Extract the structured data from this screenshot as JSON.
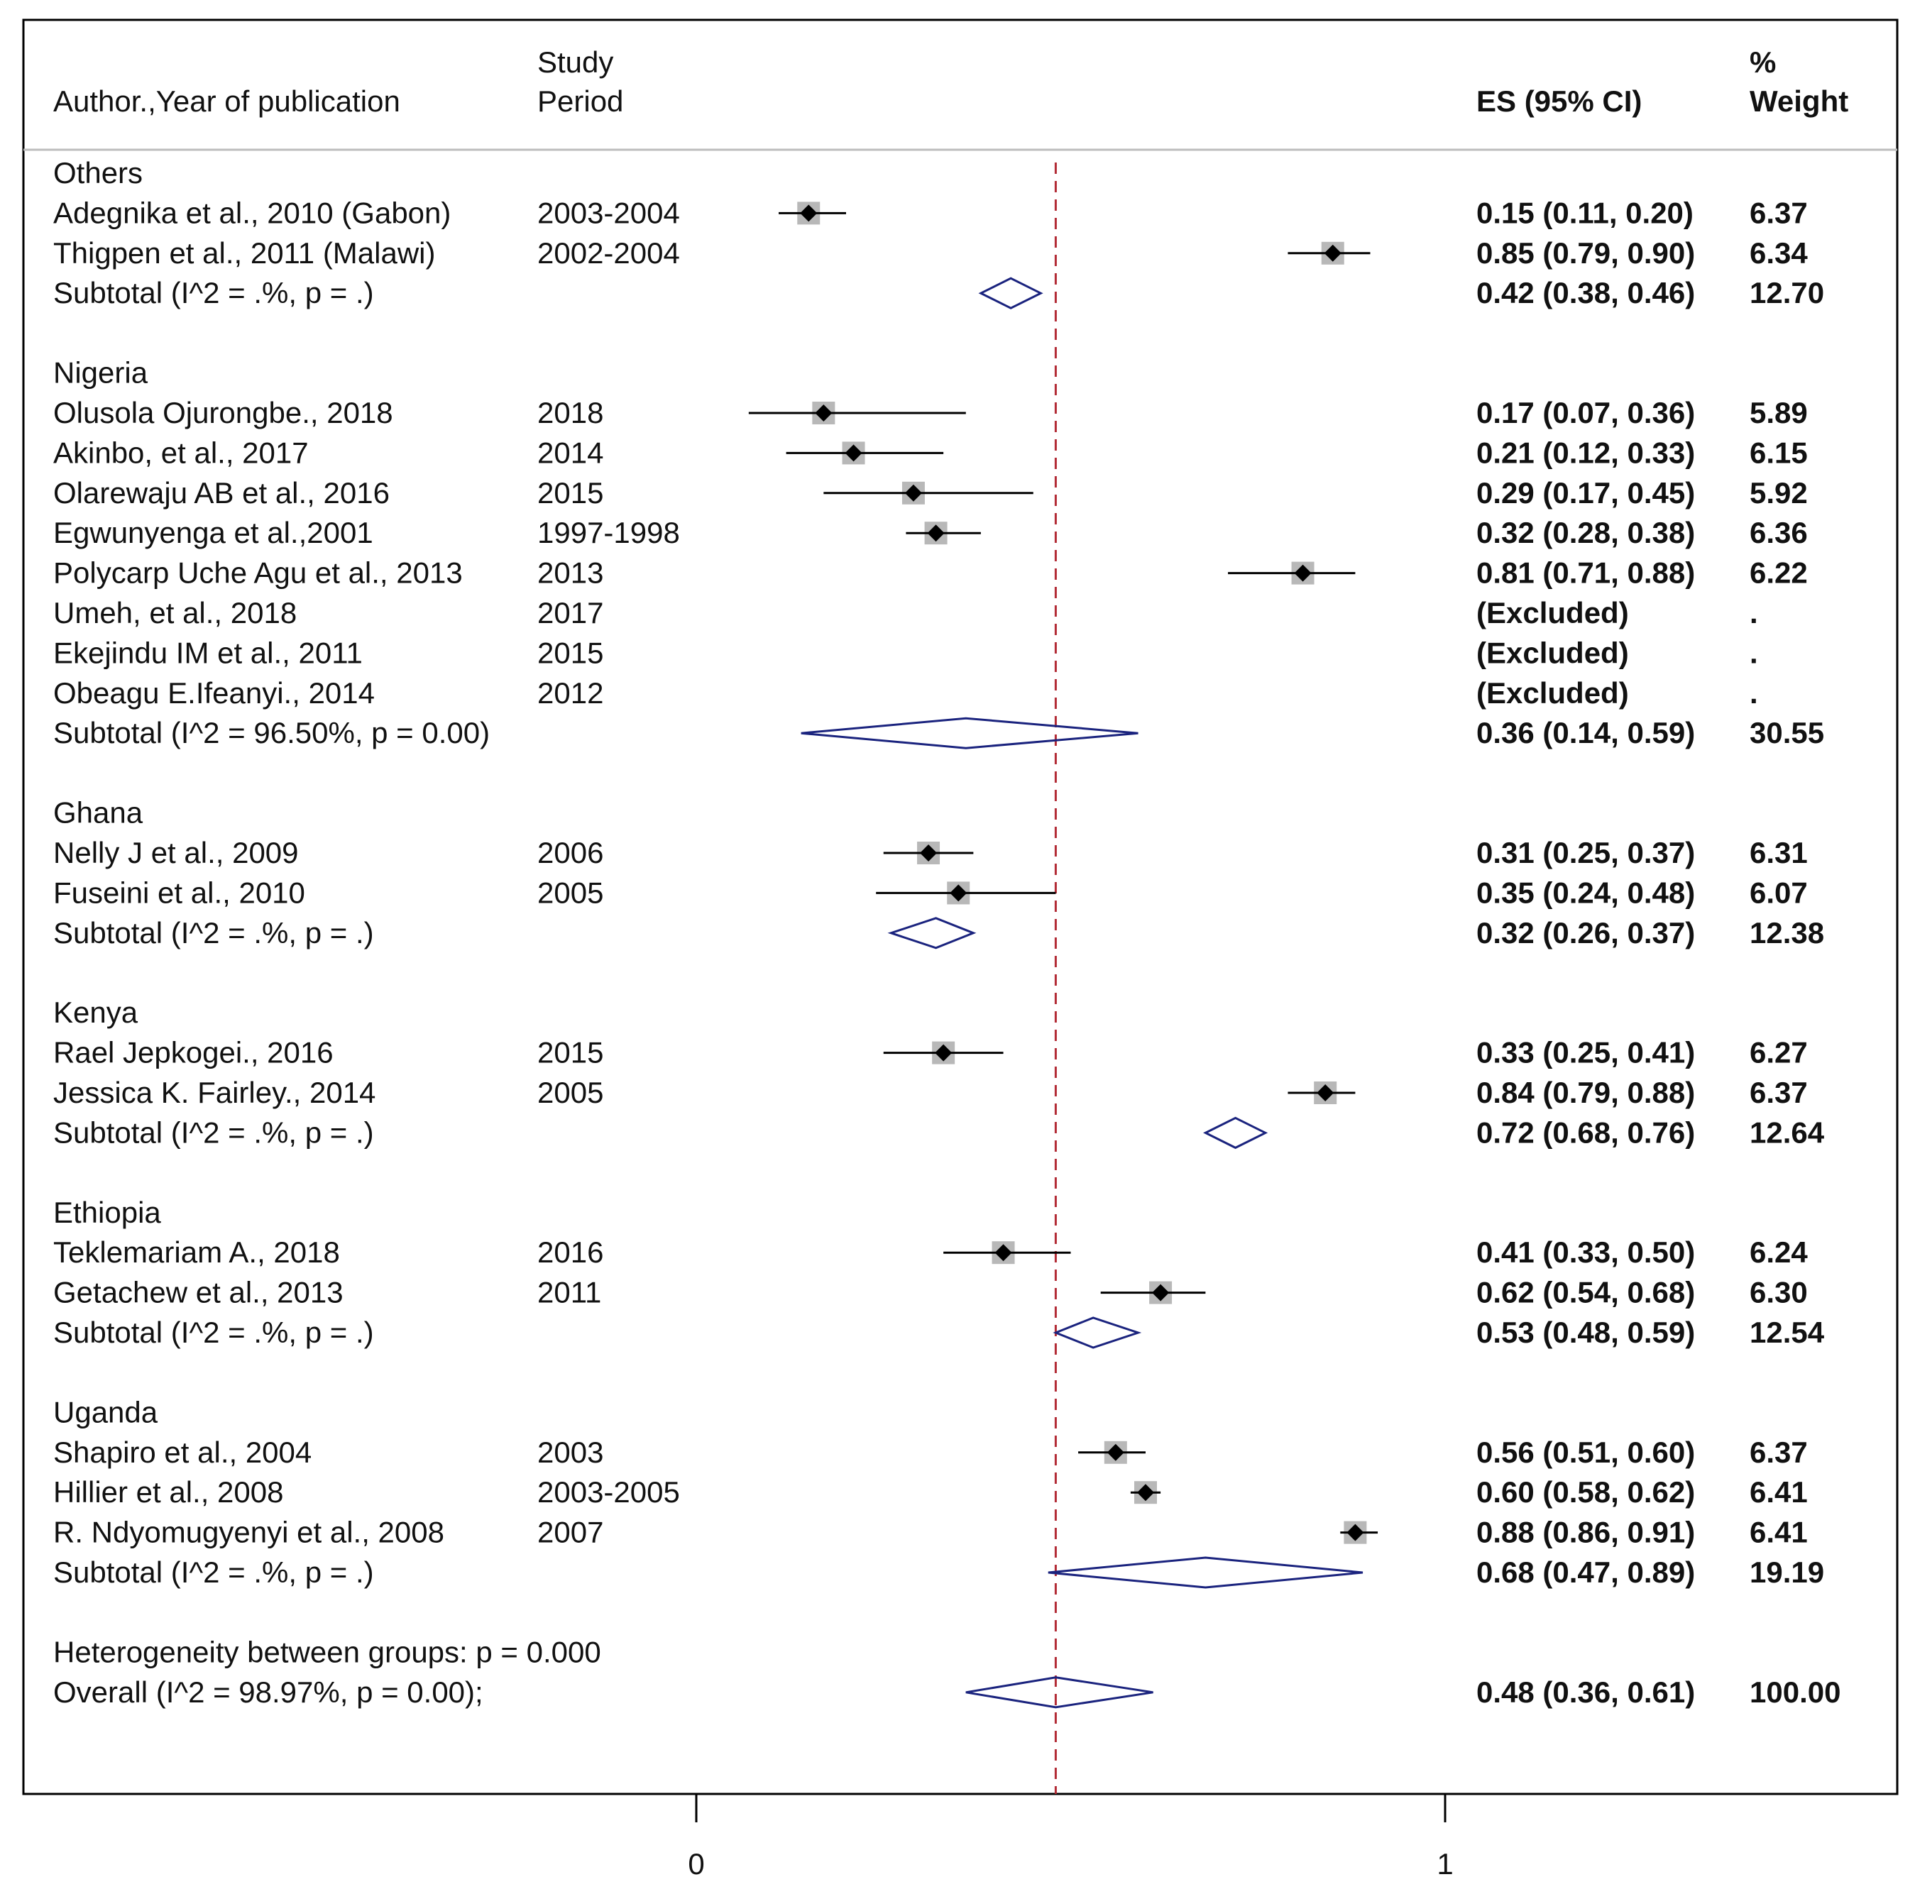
{
  "chart_data": {
    "type": "forest",
    "headers": {
      "author": "Author.,Year of publication",
      "period_line1": "Study",
      "period_line2": "Period",
      "es": "ES (95% CI)",
      "weight_line1": "%",
      "weight_line2": "Weight"
    },
    "xlim": [
      0,
      1
    ],
    "xticks": [
      {
        "value": 0,
        "label": "0"
      },
      {
        "value": 1,
        "label": "1"
      }
    ],
    "reference_line": 0.48,
    "groups": [
      {
        "name": "Others",
        "studies": [
          {
            "author": "Adegnika et al., 2010 (Gabon)",
            "period": "2003-2004",
            "es": 0.15,
            "lo": 0.11,
            "hi": 0.2,
            "es_text": "0.15 (0.11, 0.20)",
            "weight": "6.37"
          },
          {
            "author": "Thigpen et al., 2011 (Malawi)",
            "period": "2002-2004",
            "es": 0.85,
            "lo": 0.79,
            "hi": 0.9,
            "es_text": "0.85 (0.79, 0.90)",
            "weight": "6.34"
          }
        ],
        "subtotal": {
          "label": "Subtotal  (I^2 = .%, p = .)",
          "es": 0.42,
          "lo": 0.38,
          "hi": 0.46,
          "es_text": "0.42 (0.38, 0.46)",
          "weight": "12.70"
        }
      },
      {
        "name": "Nigeria",
        "studies": [
          {
            "author": "Olusola Ojurongbe., 2018",
            "period": "2018",
            "es": 0.17,
            "lo": 0.07,
            "hi": 0.36,
            "es_text": "0.17 (0.07, 0.36)",
            "weight": "5.89"
          },
          {
            "author": "Akinbo, et al., 2017",
            "period": "2014",
            "es": 0.21,
            "lo": 0.12,
            "hi": 0.33,
            "es_text": "0.21 (0.12, 0.33)",
            "weight": "6.15"
          },
          {
            "author": "Olarewaju AB et al., 2016",
            "period": "2015",
            "es": 0.29,
            "lo": 0.17,
            "hi": 0.45,
            "es_text": "0.29 (0.17, 0.45)",
            "weight": "5.92"
          },
          {
            "author": "Egwunyenga et al.,2001",
            "period": "1997-1998",
            "es": 0.32,
            "lo": 0.28,
            "hi": 0.38,
            "es_text": "0.32 (0.28, 0.38)",
            "weight": "6.36"
          },
          {
            "author": "Polycarp Uche Agu et al., 2013",
            "period": "2013",
            "es": 0.81,
            "lo": 0.71,
            "hi": 0.88,
            "es_text": "0.81 (0.71, 0.88)",
            "weight": "6.22"
          },
          {
            "author": "Umeh, et al., 2018",
            "period": "2017",
            "es": null,
            "lo": null,
            "hi": null,
            "es_text": "(Excluded)",
            "weight": "."
          },
          {
            "author": "Ekejindu IM et al., 2011",
            "period": "2015",
            "es": null,
            "lo": null,
            "hi": null,
            "es_text": "(Excluded)",
            "weight": "."
          },
          {
            "author": "Obeagu E.Ifeanyi., 2014",
            "period": "2012",
            "es": null,
            "lo": null,
            "hi": null,
            "es_text": "(Excluded)",
            "weight": "."
          }
        ],
        "subtotal": {
          "label": "Subtotal  (I^2 = 96.50%, p = 0.00)",
          "es": 0.36,
          "lo": 0.14,
          "hi": 0.59,
          "es_text": "0.36 (0.14, 0.59)",
          "weight": "30.55"
        }
      },
      {
        "name": "Ghana",
        "studies": [
          {
            "author": "Nelly J et al., 2009",
            "period": "2006",
            "es": 0.31,
            "lo": 0.25,
            "hi": 0.37,
            "es_text": "0.31 (0.25, 0.37)",
            "weight": "6.31"
          },
          {
            "author": "Fuseini et al., 2010",
            "period": "2005",
            "es": 0.35,
            "lo": 0.24,
            "hi": 0.48,
            "es_text": "0.35 (0.24, 0.48)",
            "weight": "6.07"
          }
        ],
        "subtotal": {
          "label": "Subtotal  (I^2 = .%, p = .)",
          "es": 0.32,
          "lo": 0.26,
          "hi": 0.37,
          "es_text": "0.32 (0.26, 0.37)",
          "weight": "12.38"
        }
      },
      {
        "name": "Kenya",
        "studies": [
          {
            "author": "Rael Jepkogei., 2016",
            "period": "2015",
            "es": 0.33,
            "lo": 0.25,
            "hi": 0.41,
            "es_text": "0.33 (0.25, 0.41)",
            "weight": "6.27"
          },
          {
            "author": "Jessica K. Fairley., 2014",
            "period": "2005",
            "es": 0.84,
            "lo": 0.79,
            "hi": 0.88,
            "es_text": "0.84 (0.79, 0.88)",
            "weight": "6.37"
          }
        ],
        "subtotal": {
          "label": "Subtotal  (I^2 = .%, p = .)",
          "es": 0.72,
          "lo": 0.68,
          "hi": 0.76,
          "es_text": "0.72 (0.68, 0.76)",
          "weight": "12.64"
        }
      },
      {
        "name": "Ethiopia",
        "studies": [
          {
            "author": "Teklemariam A., 2018",
            "period": "2016",
            "es": 0.41,
            "lo": 0.33,
            "hi": 0.5,
            "es_text": "0.41 (0.33, 0.50)",
            "weight": "6.24"
          },
          {
            "author": "Getachew et al., 2013",
            "period": "2011",
            "es": 0.62,
            "lo": 0.54,
            "hi": 0.68,
            "es_text": "0.62 (0.54, 0.68)",
            "weight": "6.30"
          }
        ],
        "subtotal": {
          "label": "Subtotal  (I^2 = .%, p = .)",
          "es": 0.53,
          "lo": 0.48,
          "hi": 0.59,
          "es_text": "0.53 (0.48, 0.59)",
          "weight": "12.54"
        }
      },
      {
        "name": "Uganda",
        "studies": [
          {
            "author": "Shapiro et al., 2004",
            "period": "2003",
            "es": 0.56,
            "lo": 0.51,
            "hi": 0.6,
            "es_text": "0.56 (0.51, 0.60)",
            "weight": "6.37"
          },
          {
            "author": "Hillier et al., 2008",
            "period": "2003-2005",
            "es": 0.6,
            "lo": 0.58,
            "hi": 0.62,
            "es_text": "0.60 (0.58, 0.62)",
            "weight": "6.41"
          },
          {
            "author": "R. Ndyomugyenyi et al., 2008",
            "period": "2007",
            "es": 0.88,
            "lo": 0.86,
            "hi": 0.91,
            "es_text": "0.88 (0.86, 0.91)",
            "weight": "6.41"
          }
        ],
        "subtotal": {
          "label": "Subtotal  (I^2 = .%, p = .)",
          "es": 0.68,
          "lo": 0.47,
          "hi": 0.89,
          "es_text": "0.68 (0.47, 0.89)",
          "weight": "19.19"
        }
      }
    ],
    "heterogeneity": "Heterogeneity between groups: p = 0.000",
    "overall": {
      "label": "Overall  (I^2 = 98.97%, p = 0.00);",
      "es": 0.48,
      "lo": 0.36,
      "hi": 0.61,
      "es_text": "0.48 (0.36, 0.61)",
      "weight": "100.00"
    },
    "colors": {
      "reference": "#b22b35",
      "diamond": "#1a237e",
      "marker": "#000000",
      "box": "#b8b8b8",
      "frame": "#000000",
      "text": "#111111"
    }
  }
}
